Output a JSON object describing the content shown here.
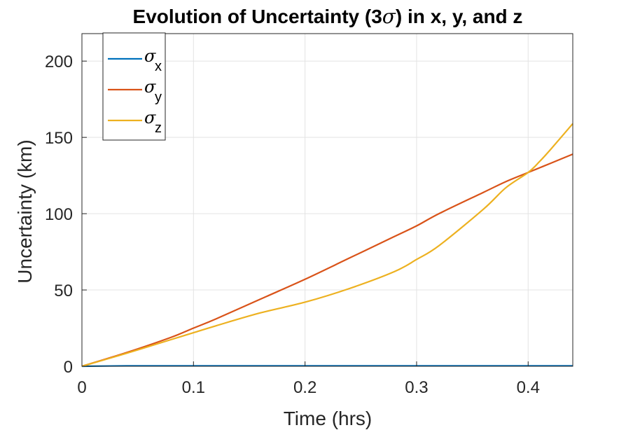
{
  "chart_data": {
    "type": "line",
    "title": "Evolution of Uncertainty (3σ) in x, y, and z",
    "title_parts": {
      "before": "Evolution of Uncertainty (3",
      "symbol": "σ",
      "after": ") in x, y, and z"
    },
    "xlabel": "Time (hrs)",
    "ylabel": "Uncertainty (km)",
    "xlim": [
      0,
      0.44
    ],
    "ylim": [
      0,
      218
    ],
    "xticks": [
      0,
      0.1,
      0.2,
      0.3,
      0.4
    ],
    "xtick_labels": [
      "0",
      "0.1",
      "0.2",
      "0.3",
      "0.4"
    ],
    "yticks": [
      0,
      50,
      100,
      150,
      200
    ],
    "ytick_labels": [
      "0",
      "50",
      "100",
      "150",
      "200"
    ],
    "grid": true,
    "legend_position": "top-left",
    "x": [
      0,
      0.04,
      0.08,
      0.1,
      0.12,
      0.16,
      0.2,
      0.24,
      0.28,
      0.3,
      0.32,
      0.36,
      0.38,
      0.4,
      0.41,
      0.42,
      0.44
    ],
    "series": [
      {
        "name": "σx",
        "symbol": "σ",
        "subscript": "x",
        "color": "#0072BD",
        "values": [
          0,
          0.3,
          0.3,
          0.3,
          0.3,
          0.3,
          0.3,
          0.3,
          0.3,
          0.3,
          0.3,
          0.3,
          0.3,
          0.3,
          0.3,
          0.3,
          0.3
        ]
      },
      {
        "name": "σy",
        "symbol": "σ",
        "subscript": "y",
        "color": "#D95319",
        "values": [
          0,
          9,
          19,
          25,
          31,
          44,
          57,
          71,
          85,
          92,
          100,
          114,
          121,
          127,
          130,
          133,
          139
        ]
      },
      {
        "name": "σz",
        "symbol": "σ",
        "subscript": "z",
        "color": "#EDB120",
        "values": [
          0,
          8.5,
          17.5,
          22,
          26.5,
          35,
          42,
          51,
          62,
          70,
          79,
          103,
          117,
          127,
          134,
          142,
          159
        ]
      }
    ]
  }
}
